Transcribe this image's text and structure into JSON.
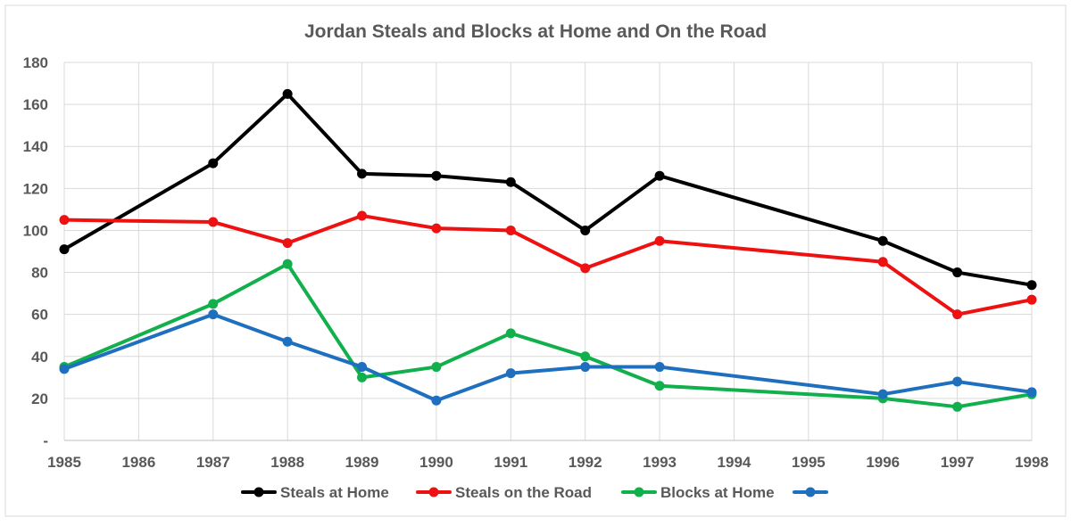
{
  "chart_data": {
    "type": "line",
    "title": "Jordan Steals and Blocks at Home and On the Road",
    "xlabel": "",
    "ylabel": "",
    "categories": [
      "1985",
      "1986",
      "1987",
      "1988",
      "1989",
      "1990",
      "1991",
      "1992",
      "1993",
      "1994",
      "1995",
      "1996",
      "1997",
      "1998"
    ],
    "y_tick_labels": [
      "-",
      "20",
      "40",
      "60",
      "80",
      "100",
      "120",
      "140",
      "160",
      "180"
    ],
    "ylim": [
      0,
      180
    ],
    "grid": true,
    "legend_position": "bottom",
    "series": [
      {
        "name": "Steals at Home",
        "color": "#000000",
        "x": [
          "1985",
          "1987",
          "1988",
          "1989",
          "1990",
          "1991",
          "1992",
          "1993",
          "1996",
          "1997",
          "1998"
        ],
        "values": [
          91,
          132,
          165,
          127,
          126,
          123,
          100,
          126,
          95,
          80,
          74
        ]
      },
      {
        "name": "Steals on the Road",
        "color": "#ee1111",
        "x": [
          "1985",
          "1987",
          "1988",
          "1989",
          "1990",
          "1991",
          "1992",
          "1993",
          "1996",
          "1997",
          "1998"
        ],
        "values": [
          105,
          104,
          94,
          107,
          101,
          100,
          82,
          95,
          85,
          60,
          67
        ]
      },
      {
        "name": "Blocks at Home",
        "color": "#12b04c",
        "x": [
          "1985",
          "1987",
          "1988",
          "1989",
          "1990",
          "1991",
          "1992",
          "1993",
          "1996",
          "1997",
          "1998"
        ],
        "values": [
          35,
          65,
          84,
          30,
          35,
          51,
          40,
          26,
          20,
          16,
          22
        ]
      },
      {
        "name": "",
        "color": "#1f6fbf",
        "x": [
          "1985",
          "1987",
          "1988",
          "1989",
          "1990",
          "1991",
          "1992",
          "1993",
          "1996",
          "1997",
          "1998"
        ],
        "values": [
          34,
          60,
          47,
          35,
          19,
          32,
          35,
          35,
          22,
          28,
          23
        ]
      }
    ]
  }
}
